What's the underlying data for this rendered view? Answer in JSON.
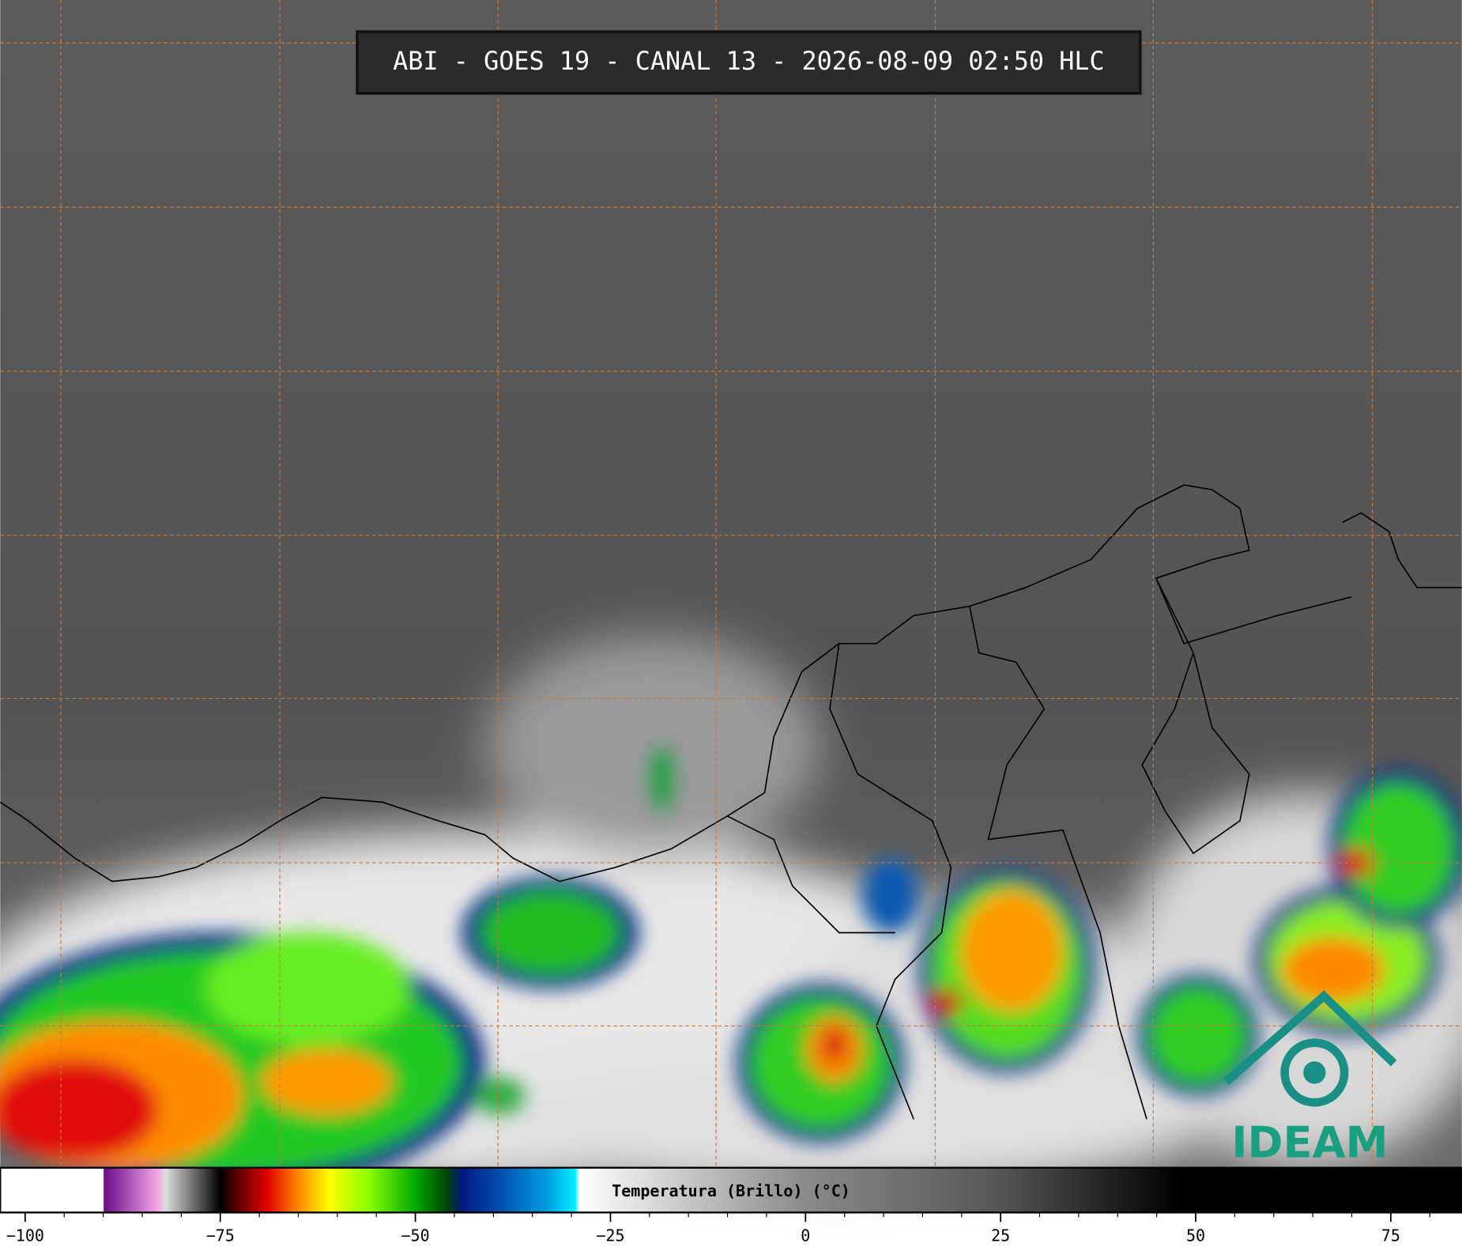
{
  "header": {
    "title": "ABI - GOES 19 - CANAL 13 - 2026-08-09 02:50 HLC"
  },
  "logo": {
    "text": "IDEAM"
  },
  "chart_data": {
    "type": "colorbar",
    "label": "Temperatura (Brillo) (°C)",
    "xlim": [
      -103.2,
      84.1
    ],
    "xticks": [
      {
        "value": -100,
        "label": "−100"
      },
      {
        "value": -75,
        "label": "−75"
      },
      {
        "value": -50,
        "label": "−50"
      },
      {
        "value": -25,
        "label": "−25"
      },
      0,
      25,
      50,
      75
    ],
    "minor_xticks": [
      -95,
      -90,
      -85,
      -80,
      -70,
      -65,
      -60,
      -55,
      -45,
      -40,
      -35,
      -30,
      -20,
      -15,
      -10,
      -5,
      5,
      10,
      15,
      20,
      30,
      35,
      40,
      45,
      55,
      60,
      65,
      70,
      80
    ],
    "stops": [
      {
        "value": -103.2,
        "color": "#ffffff"
      },
      {
        "value": -90,
        "color": "#ffffff"
      },
      {
        "value": -89.9,
        "color": "#6a0a8a"
      },
      {
        "value": -83,
        "color": "#f2a8e6"
      },
      {
        "value": -82,
        "color": "#dddddd"
      },
      {
        "value": -76,
        "color": "#222222"
      },
      {
        "value": -75,
        "color": "#000000"
      },
      {
        "value": -73,
        "color": "#550000"
      },
      {
        "value": -69,
        "color": "#e00000"
      },
      {
        "value": -65,
        "color": "#ff8800"
      },
      {
        "value": -61,
        "color": "#ffff00"
      },
      {
        "value": -56,
        "color": "#88ff00"
      },
      {
        "value": -50,
        "color": "#00aa00"
      },
      {
        "value": -46,
        "color": "#004400"
      },
      {
        "value": -44,
        "color": "#001a80"
      },
      {
        "value": -39,
        "color": "#0050b0"
      },
      {
        "value": -33,
        "color": "#00a0e0"
      },
      {
        "value": -29.5,
        "color": "#00f0ff"
      },
      {
        "value": -29,
        "color": "#ffffff"
      },
      {
        "value": 0,
        "color": "#8a8a8a"
      },
      {
        "value": 25,
        "color": "#555555"
      },
      {
        "value": 48,
        "color": "#000000"
      },
      {
        "value": 84.1,
        "color": "#000000"
      }
    ]
  }
}
